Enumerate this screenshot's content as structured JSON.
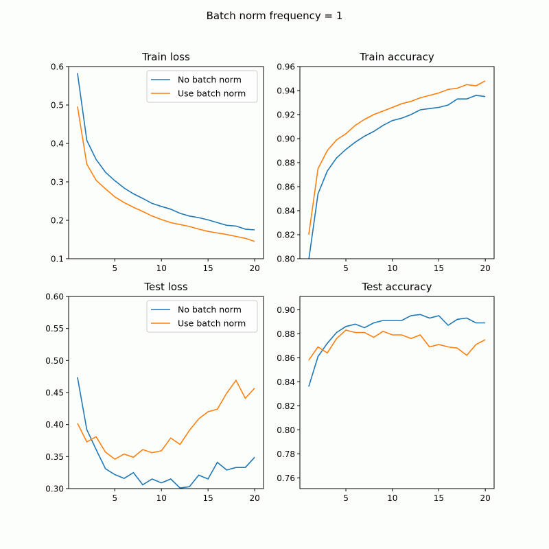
{
  "suptitle": "Batch norm frequency = 1",
  "colors": {
    "No batch norm": "#1f77b4",
    "Use batch norm": "#ff7f0e"
  },
  "chart_data": [
    {
      "type": "line",
      "title": "Train loss",
      "x": [
        1,
        2,
        3,
        4,
        5,
        6,
        7,
        8,
        9,
        10,
        11,
        12,
        13,
        14,
        15,
        16,
        17,
        18,
        19,
        20
      ],
      "xlim": [
        0.05,
        20.95
      ],
      "xticks": [
        5,
        10,
        15,
        20
      ],
      "ylim": [
        0.1,
        0.6
      ],
      "yticks": [
        0.1,
        0.2,
        0.3,
        0.4,
        0.5,
        0.6
      ],
      "ytick_labels": [
        "0.1",
        "0.2",
        "0.3",
        "0.4",
        "0.5",
        "0.6"
      ],
      "legend": "top-right",
      "series": [
        {
          "name": "No batch norm",
          "values": [
            0.583,
            0.408,
            0.358,
            0.325,
            0.303,
            0.284,
            0.269,
            0.257,
            0.244,
            0.236,
            0.229,
            0.218,
            0.211,
            0.207,
            0.201,
            0.194,
            0.187,
            0.185,
            0.177,
            0.175
          ]
        },
        {
          "name": "Use batch norm",
          "values": [
            0.496,
            0.346,
            0.304,
            0.282,
            0.261,
            0.246,
            0.234,
            0.223,
            0.211,
            0.202,
            0.194,
            0.189,
            0.184,
            0.177,
            0.171,
            0.167,
            0.163,
            0.158,
            0.153,
            0.145
          ]
        }
      ]
    },
    {
      "type": "line",
      "title": "Train accuracy",
      "x": [
        1,
        2,
        3,
        4,
        5,
        6,
        7,
        8,
        9,
        10,
        11,
        12,
        13,
        14,
        15,
        16,
        17,
        18,
        19,
        20
      ],
      "xlim": [
        0.05,
        20.95
      ],
      "xticks": [
        5,
        10,
        15,
        20
      ],
      "ylim": [
        0.8,
        0.96
      ],
      "yticks": [
        0.8,
        0.82,
        0.84,
        0.86,
        0.88,
        0.9,
        0.92,
        0.94,
        0.96
      ],
      "ytick_labels": [
        "0.80",
        "0.82",
        "0.84",
        "0.86",
        "0.88",
        "0.90",
        "0.92",
        "0.94",
        "0.96"
      ],
      "series": [
        {
          "name": "No batch norm",
          "values": [
            0.799,
            0.854,
            0.873,
            0.884,
            0.891,
            0.897,
            0.902,
            0.906,
            0.911,
            0.915,
            0.917,
            0.92,
            0.924,
            0.925,
            0.926,
            0.928,
            0.933,
            0.933,
            0.936,
            0.935
          ]
        },
        {
          "name": "Use batch norm",
          "values": [
            0.82,
            0.875,
            0.89,
            0.899,
            0.904,
            0.911,
            0.916,
            0.92,
            0.923,
            0.926,
            0.929,
            0.931,
            0.934,
            0.936,
            0.938,
            0.941,
            0.942,
            0.945,
            0.944,
            0.948
          ]
        }
      ]
    },
    {
      "type": "line",
      "title": "Test loss",
      "x": [
        1,
        2,
        3,
        4,
        5,
        6,
        7,
        8,
        9,
        10,
        11,
        12,
        13,
        14,
        15,
        16,
        17,
        18,
        19,
        20
      ],
      "xlim": [
        0.05,
        20.95
      ],
      "xticks": [
        5,
        10,
        15,
        20
      ],
      "ylim": [
        0.3,
        0.6
      ],
      "yticks": [
        0.3,
        0.35,
        0.4,
        0.45,
        0.5,
        0.55,
        0.6
      ],
      "ytick_labels": [
        "0.30",
        "0.35",
        "0.40",
        "0.45",
        "0.50",
        "0.55",
        "0.60"
      ],
      "legend": "top-right",
      "series": [
        {
          "name": "No batch norm",
          "values": [
            0.474,
            0.392,
            0.361,
            0.331,
            0.322,
            0.316,
            0.325,
            0.306,
            0.315,
            0.309,
            0.315,
            0.301,
            0.303,
            0.321,
            0.315,
            0.341,
            0.329,
            0.333,
            0.333,
            0.349
          ]
        },
        {
          "name": "Use batch norm",
          "values": [
            0.402,
            0.373,
            0.381,
            0.357,
            0.346,
            0.354,
            0.349,
            0.361,
            0.356,
            0.359,
            0.379,
            0.369,
            0.391,
            0.409,
            0.42,
            0.424,
            0.449,
            0.469,
            0.441,
            0.457
          ]
        }
      ]
    },
    {
      "type": "line",
      "title": "Test accuracy",
      "x": [
        1,
        2,
        3,
        4,
        5,
        6,
        7,
        8,
        9,
        10,
        11,
        12,
        13,
        14,
        15,
        16,
        17,
        18,
        19,
        20
      ],
      "xlim": [
        0.05,
        20.95
      ],
      "xticks": [
        5,
        10,
        15,
        20
      ],
      "ylim": [
        0.751,
        0.911
      ],
      "yticks": [
        0.76,
        0.78,
        0.8,
        0.82,
        0.84,
        0.86,
        0.88,
        0.9
      ],
      "ytick_labels": [
        "0.76",
        "0.78",
        "0.80",
        "0.82",
        "0.84",
        "0.86",
        "0.88",
        "0.90"
      ],
      "series": [
        {
          "name": "No batch norm",
          "values": [
            0.836,
            0.861,
            0.872,
            0.881,
            0.886,
            0.888,
            0.885,
            0.889,
            0.891,
            0.891,
            0.891,
            0.895,
            0.896,
            0.893,
            0.895,
            0.887,
            0.892,
            0.893,
            0.889,
            0.889
          ]
        },
        {
          "name": "Use batch norm",
          "values": [
            0.858,
            0.869,
            0.864,
            0.876,
            0.883,
            0.881,
            0.881,
            0.877,
            0.882,
            0.879,
            0.879,
            0.876,
            0.879,
            0.869,
            0.871,
            0.869,
            0.868,
            0.862,
            0.871,
            0.875
          ]
        }
      ]
    }
  ]
}
